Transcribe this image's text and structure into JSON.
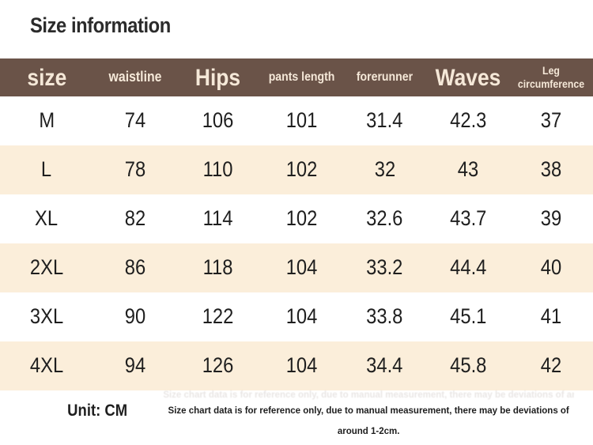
{
  "chart_data": {
    "type": "table",
    "title": "Size information",
    "columns": [
      {
        "label": "size"
      },
      {
        "label": "waistline"
      },
      {
        "label": "Hips"
      },
      {
        "label": "pants length"
      },
      {
        "label": "forerunner"
      },
      {
        "label": "Waves"
      },
      {
        "label": "Leg circumference"
      }
    ],
    "rows": [
      [
        "M",
        "74",
        "106",
        "101",
        "31.4",
        "42.3",
        "37"
      ],
      [
        "L",
        "78",
        "110",
        "102",
        "32",
        "43",
        "38"
      ],
      [
        "XL",
        "82",
        "114",
        "102",
        "32.6",
        "43.7",
        "39"
      ],
      [
        "2XL",
        "86",
        "118",
        "104",
        "33.2",
        "44.4",
        "40"
      ],
      [
        "3XL",
        "90",
        "122",
        "104",
        "33.8",
        "45.1",
        "41"
      ],
      [
        "4XL",
        "94",
        "126",
        "104",
        "34.4",
        "45.8",
        "42"
      ]
    ],
    "unit_label": "Unit: CM",
    "note": "Size chart data is for reference only, due to manual measurement, there may be deviations of around 1-2cm."
  },
  "colors": {
    "header_bg": "#6a5348",
    "header_text": "#f5e8d8",
    "stripe_bg": "#fbeeda",
    "row_bg": "#ffffff",
    "body_text": "#1e1e1e",
    "title_text": "#2b2b2b"
  }
}
